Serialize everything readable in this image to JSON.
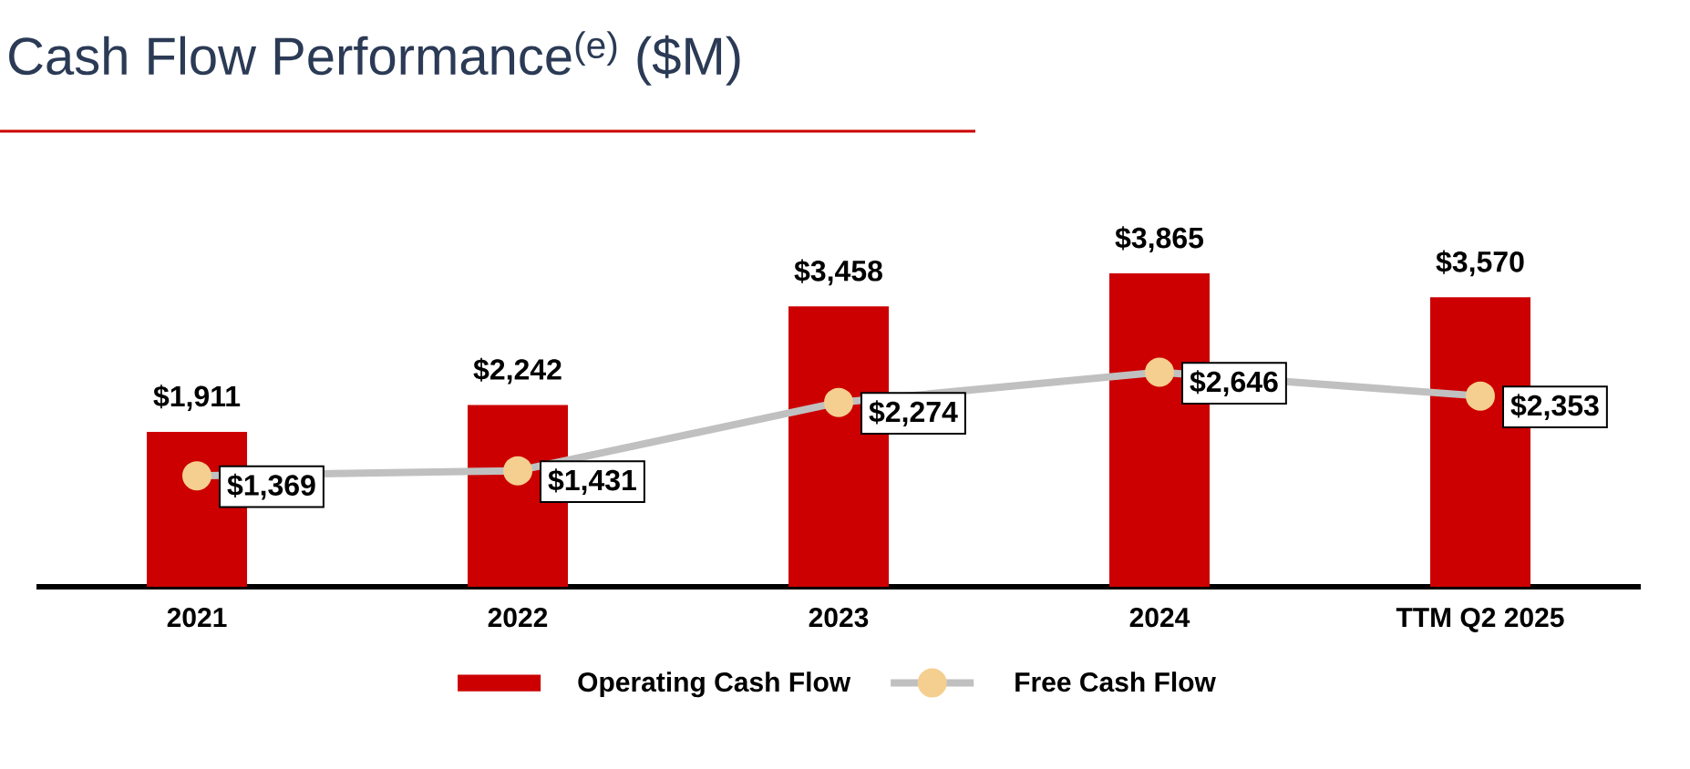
{
  "chart_data": {
    "type": "bar",
    "title": "Cash Flow Performance$^{(e)}$ ($M)",
    "categories": [
      "2021",
      "2022",
      "2023",
      "2024",
      "TTM Q2 2025"
    ],
    "series": [
      {
        "name": "Operating Cash Flow",
        "color": "#cc0000",
        "values": [
          1911,
          2242,
          3458,
          3865,
          3570
        ],
        "value_labels": [
          "$1,911",
          "$2,242",
          "$3,458",
          "$3,865",
          "$3,570"
        ]
      },
      {
        "name": "Free Cash Flow",
        "type": "line",
        "color": "#c0c0c0",
        "colors": [
          "#f5cf8f",
          "#f5cf8f",
          "#f5cf8f",
          "#f5cf8f",
          "#f5cf8f"
        ],
        "marker": "circle",
        "values": [
          1369,
          1431,
          2274,
          2646,
          2353
        ],
        "value_labels": [
          "$1,369",
          "$1,431",
          "$2,274",
          "$2,646",
          "$2,353"
        ]
      }
    ],
    "legend": "bottom"
  }
}
